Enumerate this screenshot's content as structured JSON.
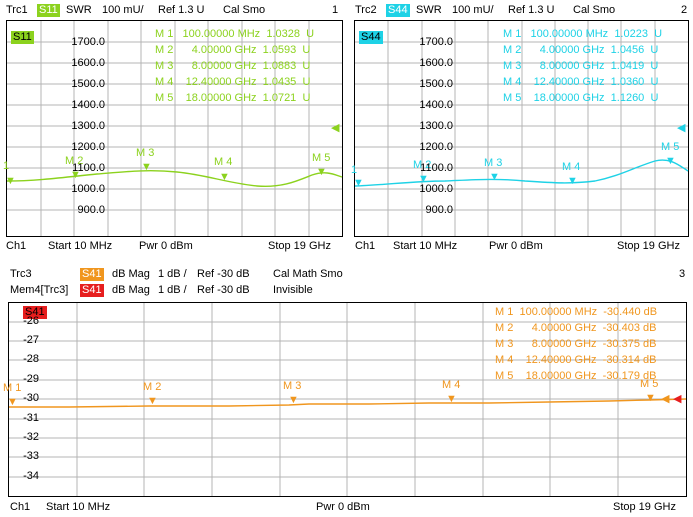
{
  "colors": {
    "trace_green": "#8cd21e",
    "trace_cyan": "#1ed2e6",
    "trace_orange": "#f0961e",
    "trace_red": "#e61e1e",
    "grid": "#b4b4b4"
  },
  "left_panel": {
    "trace_label": "Trc1",
    "param_badge": "S11",
    "format": "SWR",
    "scale": "100 mU/",
    "ref": "Ref 1.3 U",
    "flags": "Cal Smo",
    "channel_no": "1",
    "plot_badge": "S11",
    "y_ticks": [
      "1700.0",
      "1600.0",
      "1500.0",
      "1400.0",
      "1300.0",
      "1200.0",
      "1100.0",
      "1000.0",
      "900.0"
    ],
    "markers": [
      {
        "name": "M 1",
        "freq": "100.00000",
        "unit": "MHz",
        "value": "1.0328",
        "vunit": "U"
      },
      {
        "name": "M 2",
        "freq": "4.00000",
        "unit": "GHz",
        "value": "1.0593",
        "vunit": "U"
      },
      {
        "name": "M 3",
        "freq": "8.00000",
        "unit": "GHz",
        "value": "1.0883",
        "vunit": "U"
      },
      {
        "name": "M 4",
        "freq": "12.40000",
        "unit": "GHz",
        "value": "1.0435",
        "vunit": "U"
      },
      {
        "name": "M 5",
        "freq": "18.00000",
        "unit": "GHz",
        "value": "1.0721",
        "vunit": "U"
      }
    ],
    "plot_marker_labels": [
      "1",
      "M 2",
      "M 3",
      "M 4",
      "M 5"
    ],
    "footer": {
      "channel": "Ch1",
      "start": "Start  10 MHz",
      "power": "Pwr  0 dBm",
      "stop": "Stop  19 GHz"
    }
  },
  "right_panel": {
    "trace_label": "Trc2",
    "param_badge": "S44",
    "format": "SWR",
    "scale": "100 mU/",
    "ref": "Ref 1.3 U",
    "flags": "Cal Smo",
    "channel_no": "2",
    "plot_badge": "S44",
    "y_ticks": [
      "1700.0",
      "1600.0",
      "1500.0",
      "1400.0",
      "1300.0",
      "1200.0",
      "1100.0",
      "1000.0",
      "900.0"
    ],
    "markers": [
      {
        "name": "M 1",
        "freq": "100.00000",
        "unit": "MHz",
        "value": "1.0223",
        "vunit": "U"
      },
      {
        "name": "M 2",
        "freq": "4.00000",
        "unit": "GHz",
        "value": "1.0456",
        "vunit": "U"
      },
      {
        "name": "M 3",
        "freq": "8.00000",
        "unit": "GHz",
        "value": "1.0419",
        "vunit": "U"
      },
      {
        "name": "M 4",
        "freq": "12.40000",
        "unit": "GHz",
        "value": "1.0360",
        "vunit": "U"
      },
      {
        "name": "M 5",
        "freq": "18.00000",
        "unit": "GHz",
        "value": "1.1260",
        "vunit": "U"
      }
    ],
    "plot_marker_labels": [
      "1",
      "M 2",
      "M 3",
      "M 4",
      "M 5"
    ],
    "footer": {
      "channel": "Ch1",
      "start": "Start  10 MHz",
      "power": "Pwr  0 dBm",
      "stop": "Stop  19 GHz"
    }
  },
  "bottom_panel": {
    "trace_label": "Trc3",
    "param_badge": "S41",
    "format": "dB Mag",
    "scale": "1 dB /",
    "ref": "Ref -30 dB",
    "flags": "Cal Math Smo",
    "channel_no": "3",
    "mem_label": "Mem4[Trc3]",
    "mem_badge": "S41",
    "mem_format": "dB Mag",
    "mem_scale": "1 dB /",
    "mem_ref": "Ref -30 dB",
    "mem_flags": "Invisible",
    "plot_badge": "S41",
    "y_ticks": [
      "-26",
      "-27",
      "-28",
      "-29",
      "-30",
      "-31",
      "-32",
      "-33",
      "-34"
    ],
    "markers": [
      {
        "name": "M 1",
        "freq": "100.00000",
        "unit": "MHz",
        "value": "-30.440",
        "vunit": "dB"
      },
      {
        "name": "M 2",
        "freq": "4.00000",
        "unit": "GHz",
        "value": "-30.403",
        "vunit": "dB"
      },
      {
        "name": "M 3",
        "freq": "8.00000",
        "unit": "GHz",
        "value": "-30.375",
        "vunit": "dB"
      },
      {
        "name": "M 4",
        "freq": "12.40000",
        "unit": "GHz",
        "value": "-30.314",
        "vunit": "dB"
      },
      {
        "name": "M 5",
        "freq": "18.00000",
        "unit": "GHz",
        "value": "-30.179",
        "vunit": "dB"
      }
    ],
    "plot_marker_labels": [
      "M 1",
      "M 2",
      "M 3",
      "M 4",
      "M 5"
    ],
    "footer": {
      "channel": "Ch1",
      "start": "Start  10 MHz",
      "power": "Pwr  0 dBm",
      "stop": "Stop  19 GHz"
    }
  }
}
